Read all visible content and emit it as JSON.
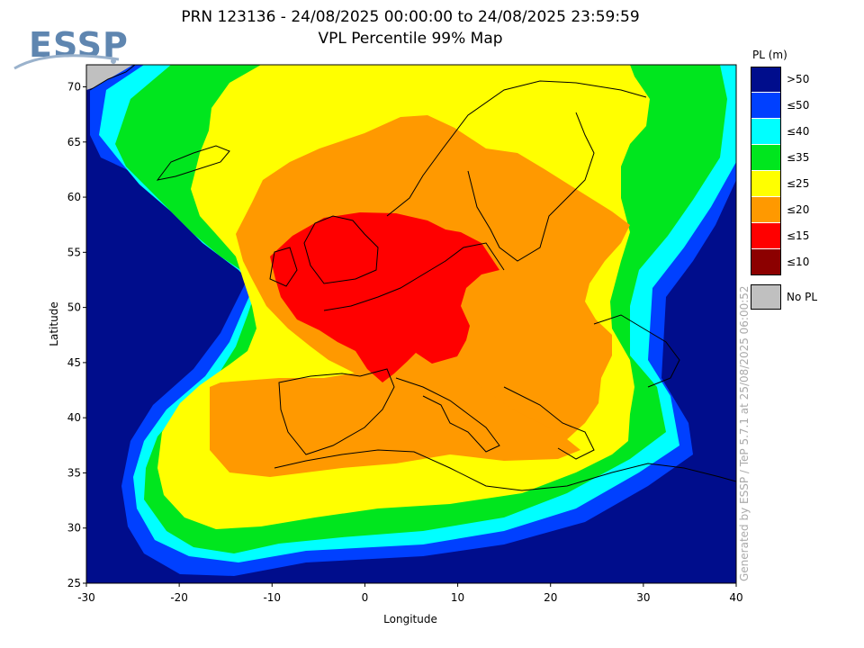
{
  "header": {
    "logo_text": "ESSP",
    "title_line1": "PRN 123136 - 24/08/2025 00:00:00 to 24/08/2025 23:59:59",
    "title_line2": "VPL Percentile 99% Map"
  },
  "axes": {
    "x_label": "Longitude",
    "y_label": "Latitude",
    "x_range": [
      -30,
      40
    ],
    "y_range": [
      25,
      72
    ],
    "x_ticks": [
      "-30",
      "-20",
      "-10",
      "0",
      "10",
      "20",
      "30",
      "40"
    ],
    "y_ticks": [
      "25",
      "30",
      "35",
      "40",
      "45",
      "50",
      "55",
      "60",
      "65",
      "70"
    ]
  },
  "legend": {
    "title": "PL (m)",
    "items": [
      {
        "label": ">50",
        "color": "#000d8c"
      },
      {
        "label": "≤50",
        "color": "#0040ff"
      },
      {
        "label": "≤40",
        "color": "#00ffff"
      },
      {
        "label": "≤35",
        "color": "#00e61e"
      },
      {
        "label": "≤25",
        "color": "#ffff00"
      },
      {
        "label": "≤20",
        "color": "#ff9900"
      },
      {
        "label": "≤15",
        "color": "#ff0000"
      },
      {
        "label": "≤10",
        "color": "#8c0000"
      }
    ],
    "no_pl": {
      "label": "No PL",
      "color": "#c0c0c0"
    }
  },
  "footer": {
    "generated_note": "Generated by ESSP / TeP 5.7.1 at 25/08/2025 06:00:52"
  }
}
